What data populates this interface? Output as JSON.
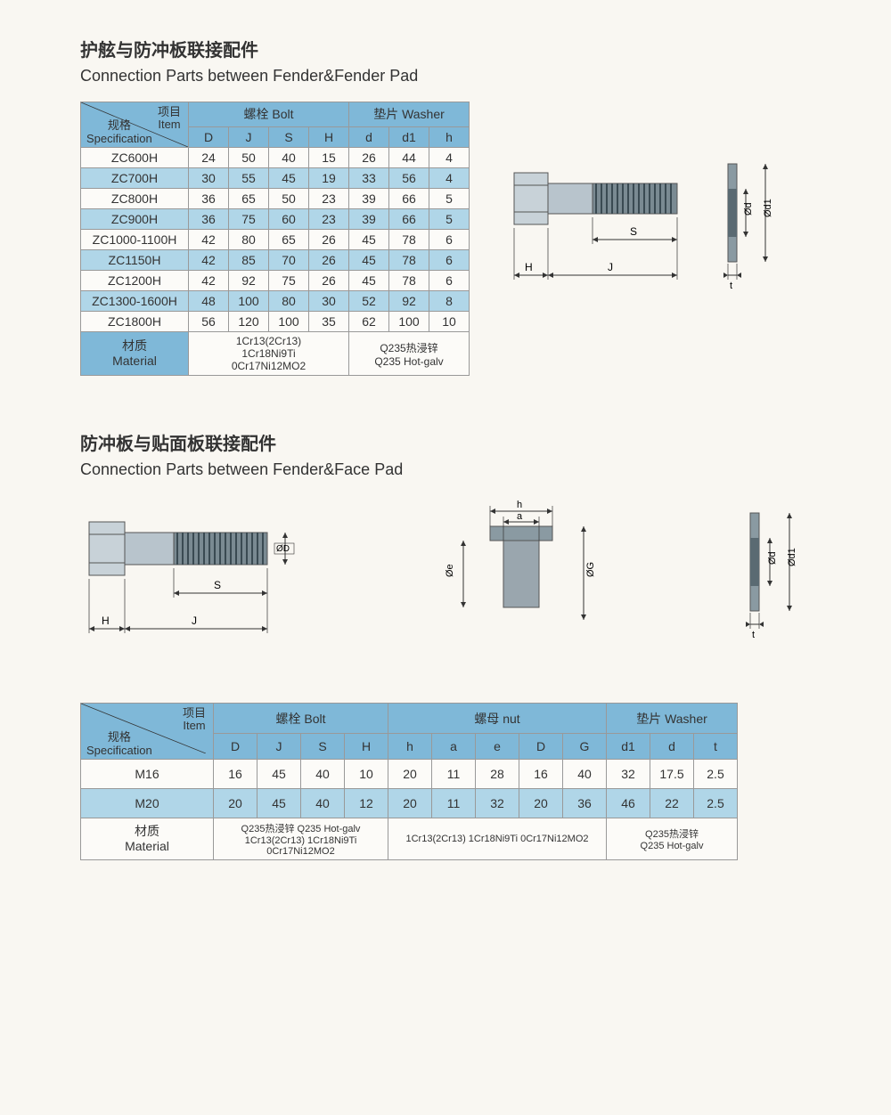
{
  "section1": {
    "title_cn": "护舷与防冲板联接配件",
    "title_en": "Connection Parts between Fender&Fender Pad",
    "corner": {
      "item_cn": "项目",
      "item_en": "Item",
      "spec_cn": "规格",
      "spec_en": "Specification"
    },
    "group_headers": {
      "bolt": "螺栓 Bolt",
      "washer": "垫片 Washer"
    },
    "sub_headers": [
      "D",
      "J",
      "S",
      "H",
      "d",
      "d1",
      "h"
    ],
    "rows": [
      {
        "name": "ZC600H",
        "vals": [
          "24",
          "50",
          "40",
          "15",
          "26",
          "44",
          "4"
        ]
      },
      {
        "name": "ZC700H",
        "vals": [
          "30",
          "55",
          "45",
          "19",
          "33",
          "56",
          "4"
        ]
      },
      {
        "name": "ZC800H",
        "vals": [
          "36",
          "65",
          "50",
          "23",
          "39",
          "66",
          "5"
        ]
      },
      {
        "name": "ZC900H",
        "vals": [
          "36",
          "75",
          "60",
          "23",
          "39",
          "66",
          "5"
        ]
      },
      {
        "name": "ZC1000-1100H",
        "vals": [
          "42",
          "80",
          "65",
          "26",
          "45",
          "78",
          "6"
        ]
      },
      {
        "name": "ZC1150H",
        "vals": [
          "42",
          "85",
          "70",
          "26",
          "45",
          "78",
          "6"
        ]
      },
      {
        "name": "ZC1200H",
        "vals": [
          "42",
          "92",
          "75",
          "26",
          "45",
          "78",
          "6"
        ]
      },
      {
        "name": "ZC1300-1600H",
        "vals": [
          "48",
          "100",
          "80",
          "30",
          "52",
          "92",
          "8"
        ]
      },
      {
        "name": "ZC1800H",
        "vals": [
          "56",
          "120",
          "100",
          "35",
          "62",
          "100",
          "10"
        ]
      }
    ],
    "material": {
      "label_cn": "材质",
      "label_en": "Material",
      "bolt": "1Cr13(2Cr13)\n1Cr18Ni9Ti\n0Cr17Ni12MO2",
      "washer": "Q235热浸锌\nQ235 Hot-galv"
    },
    "diagram": {
      "dims": {
        "S": "S",
        "H": "H",
        "J": "J",
        "d": "Ød",
        "d1": "Ød1",
        "t": "t"
      }
    }
  },
  "section2": {
    "title_cn": "防冲板与贴面板联接配件",
    "title_en": "Connection Parts between Fender&Face Pad",
    "corner": {
      "item_cn": "项目",
      "item_en": "Item",
      "spec_cn": "规格",
      "spec_en": "Specification"
    },
    "group_headers": {
      "bolt": "螺栓 Bolt",
      "nut": "螺母 nut",
      "washer": "垫片 Washer"
    },
    "sub_headers": [
      "D",
      "J",
      "S",
      "H",
      "h",
      "a",
      "e",
      "D",
      "G",
      "d1",
      "d",
      "t"
    ],
    "rows": [
      {
        "name": "M16",
        "vals": [
          "16",
          "45",
          "40",
          "10",
          "20",
          "11",
          "28",
          "16",
          "40",
          "32",
          "17.5",
          "2.5"
        ]
      },
      {
        "name": "M20",
        "vals": [
          "20",
          "45",
          "40",
          "12",
          "20",
          "11",
          "32",
          "20",
          "36",
          "46",
          "22",
          "2.5"
        ]
      }
    ],
    "material": {
      "label_cn": "材质",
      "label_en": "Material",
      "bolt": "Q235热浸锌  Q235 Hot-galv\n1Cr13(2Cr13)  1Cr18Ni9Ti\n0Cr17Ni12MO2",
      "nut": "1Cr13(2Cr13)  1Cr18Ni9Ti  0Cr17Ni12MO2",
      "washer": "Q235热浸锌\nQ235 Hot-galv"
    },
    "diagram": {
      "dims": {
        "D2": "ØD",
        "S": "S",
        "H": "H",
        "J": "J",
        "e": "Øe",
        "h": "h",
        "a": "a",
        "G": "ØG",
        "d": "Ød",
        "d1": "Ød1",
        "t": "t"
      }
    }
  },
  "colors": {
    "header_blue": "#7fb8d8",
    "row_blue": "#b0d6e8",
    "row_white": "#fcfbf8",
    "border": "#999999",
    "bolt_grey": "#7a8a92",
    "bolt_light": "#c8d2d8"
  }
}
